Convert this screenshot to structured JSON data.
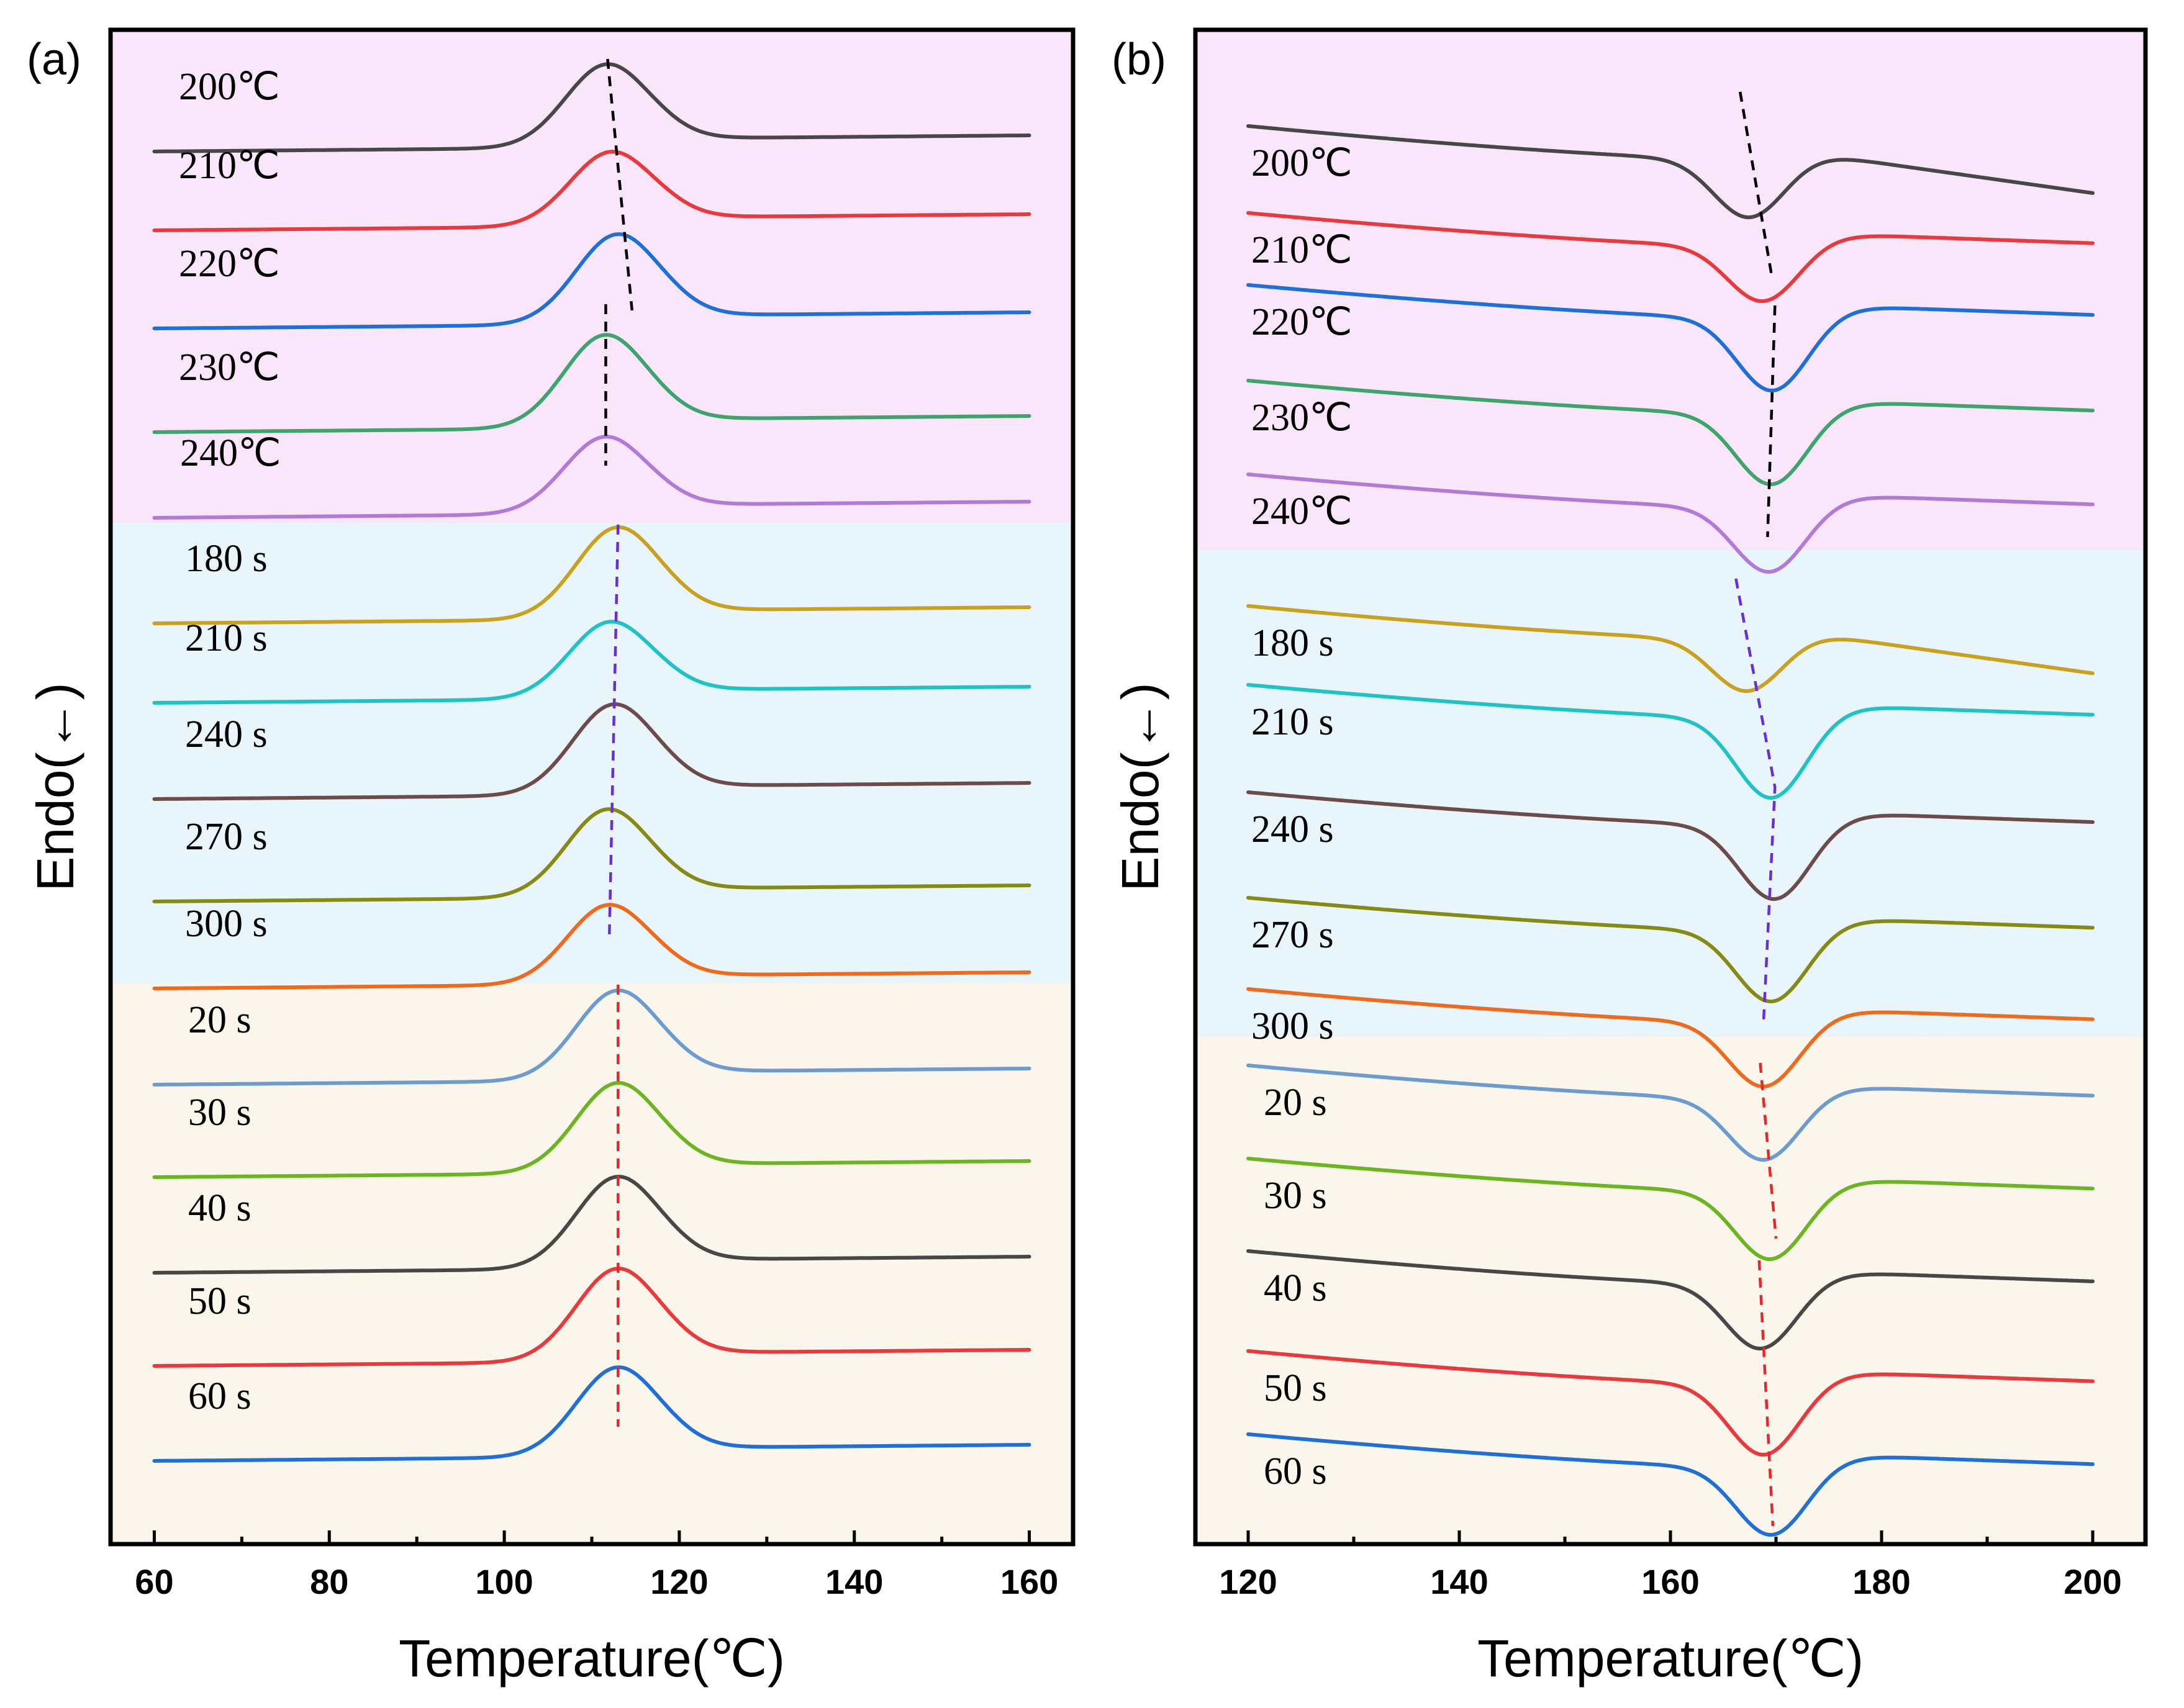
{
  "chart_data": [
    {
      "type": "line",
      "panel_label": "(a)",
      "xlabel": "Temperature(℃)",
      "ylabel": "Endo(←)",
      "xlim": [
        55,
        165
      ],
      "xticks": [
        60,
        80,
        100,
        120,
        140,
        160
      ],
      "x_range": [
        60,
        160
      ],
      "curve_shape": "exothermic peak (upward)",
      "groups": [
        {
          "name": "temperature",
          "background": "#f9e6fa",
          "guide_color": "#000000",
          "series": [
            {
              "name": "200℃",
              "color": "#474747",
              "peak_x": 111.8
            },
            {
              "name": "210℃",
              "color": "#e9393b",
              "peak_x": 112.3
            },
            {
              "name": "220℃",
              "color": "#1f6fd9",
              "peak_x": 113.0
            },
            {
              "name": "230℃",
              "color": "#3da46c",
              "peak_x": 111.6
            },
            {
              "name": "240℃",
              "color": "#b27ad8",
              "peak_x": 111.6
            }
          ]
        },
        {
          "name": "time-long",
          "background": "#e8f5fb",
          "guide_color": "#6a2ed8",
          "series": [
            {
              "name": "180 s",
              "color": "#c9a11e",
              "peak_x": 113.0
            },
            {
              "name": "210 s",
              "color": "#1fc3c6",
              "peak_x": 112.2
            },
            {
              "name": "240 s",
              "color": "#6e4b4b",
              "peak_x": 112.6
            },
            {
              "name": "270 s",
              "color": "#868a13",
              "peak_x": 111.9
            },
            {
              "name": "300 s",
              "color": "#f06a1d",
              "peak_x": 112.0
            }
          ]
        },
        {
          "name": "time-short",
          "background": "#fbf6eb",
          "guide_color": "#e82828",
          "series": [
            {
              "name": "20 s",
              "color": "#6b9bd1",
              "peak_x": 113.0
            },
            {
              "name": "30 s",
              "color": "#6cb521",
              "peak_x": 113.0
            },
            {
              "name": "40 s",
              "color": "#474747",
              "peak_x": 113.0
            },
            {
              "name": "50 s",
              "color": "#e9393b",
              "peak_x": 113.0
            },
            {
              "name": "60 s",
              "color": "#1f6fd9",
              "peak_x": 113.0
            }
          ]
        }
      ]
    },
    {
      "type": "line",
      "panel_label": "(b)",
      "xlabel": "Temperature(℃)",
      "ylabel": "Endo(←)",
      "xlim": [
        115,
        205
      ],
      "xticks": [
        120,
        140,
        160,
        180,
        200
      ],
      "x_range": [
        120,
        200
      ],
      "curve_shape": "endothermic peak (downward)",
      "groups": [
        {
          "name": "temperature",
          "background": "#f9e6fa",
          "guide_color": "#000000",
          "series": [
            {
              "name": "200℃",
              "color": "#474747",
              "peak_x": 167.5
            },
            {
              "name": "210℃",
              "color": "#e9393b",
              "peak_x": 168.8
            },
            {
              "name": "220℃",
              "color": "#1f6fd9",
              "peak_x": 169.7
            },
            {
              "name": "230℃",
              "color": "#3da46c",
              "peak_x": 169.6
            },
            {
              "name": "240℃",
              "color": "#b27ad8",
              "peak_x": 169.4
            }
          ]
        },
        {
          "name": "time-long",
          "background": "#e8f5fb",
          "guide_color": "#6a2ed8",
          "series": [
            {
              "name": "180 s",
              "color": "#c9a11e",
              "peak_x": 167.3
            },
            {
              "name": "210 s",
              "color": "#1fc3c6",
              "peak_x": 169.6
            },
            {
              "name": "240 s",
              "color": "#6e4b4b",
              "peak_x": 169.9
            },
            {
              "name": "270 s",
              "color": "#868a13",
              "peak_x": 169.6
            },
            {
              "name": "300 s",
              "color": "#f06a1d",
              "peak_x": 168.9
            }
          ]
        },
        {
          "name": "time-short",
          "background": "#fbf6eb",
          "guide_color": "#e82828",
          "series": [
            {
              "name": "20 s",
              "color": "#6b9bd1",
              "peak_x": 168.9
            },
            {
              "name": "30 s",
              "color": "#6cb521",
              "peak_x": 169.5
            },
            {
              "name": "40 s",
              "color": "#474747",
              "peak_x": 168.6
            },
            {
              "name": "50 s",
              "color": "#e9393b",
              "peak_x": 168.9
            },
            {
              "name": "60 s",
              "color": "#1f6fd9",
              "peak_x": 169.6
            }
          ]
        }
      ]
    }
  ]
}
